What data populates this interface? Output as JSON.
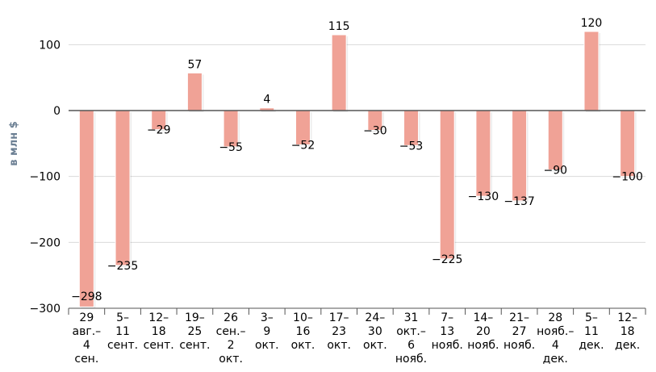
{
  "chart_data": {
    "type": "bar",
    "title": "",
    "xlabel": "",
    "ylabel": "в млн $",
    "ylim": [
      -300,
      150
    ],
    "yticks": [
      -300,
      -200,
      -100,
      0,
      100
    ],
    "grid": true,
    "legend": "none",
    "categories": [
      [
        "29",
        "авг.–",
        "4",
        "сен."
      ],
      [
        "5–",
        "11",
        "сент."
      ],
      [
        "12–",
        "18",
        "сент."
      ],
      [
        "19–",
        "25",
        "сент."
      ],
      [
        "26",
        "сен.–",
        "2",
        "окт."
      ],
      [
        "3–",
        "9",
        "окт."
      ],
      [
        "10–",
        "16",
        "окт."
      ],
      [
        "17–",
        "23",
        "окт."
      ],
      [
        "24–",
        "30",
        "окт."
      ],
      [
        "31",
        "окт.–",
        "6",
        "нояб."
      ],
      [
        "7–",
        "13",
        "нояб."
      ],
      [
        "14–",
        "20",
        "нояб."
      ],
      [
        "21–",
        "27",
        "нояб."
      ],
      [
        "28",
        "нояб.–",
        "4",
        "дек."
      ],
      [
        "5–",
        "11",
        "дек."
      ],
      [
        "12–",
        "18",
        "дек."
      ]
    ],
    "values": [
      -298,
      -235,
      -29,
      57,
      -55,
      4,
      -52,
      115,
      -30,
      -53,
      -225,
      -130,
      -137,
      -90,
      120,
      -100
    ],
    "colors": {
      "bar": "#f0a296",
      "bar_edge": "#ffffff",
      "grid": "#d9d9d9",
      "axis": "#555555",
      "ylabel": "#6b7f93"
    }
  }
}
